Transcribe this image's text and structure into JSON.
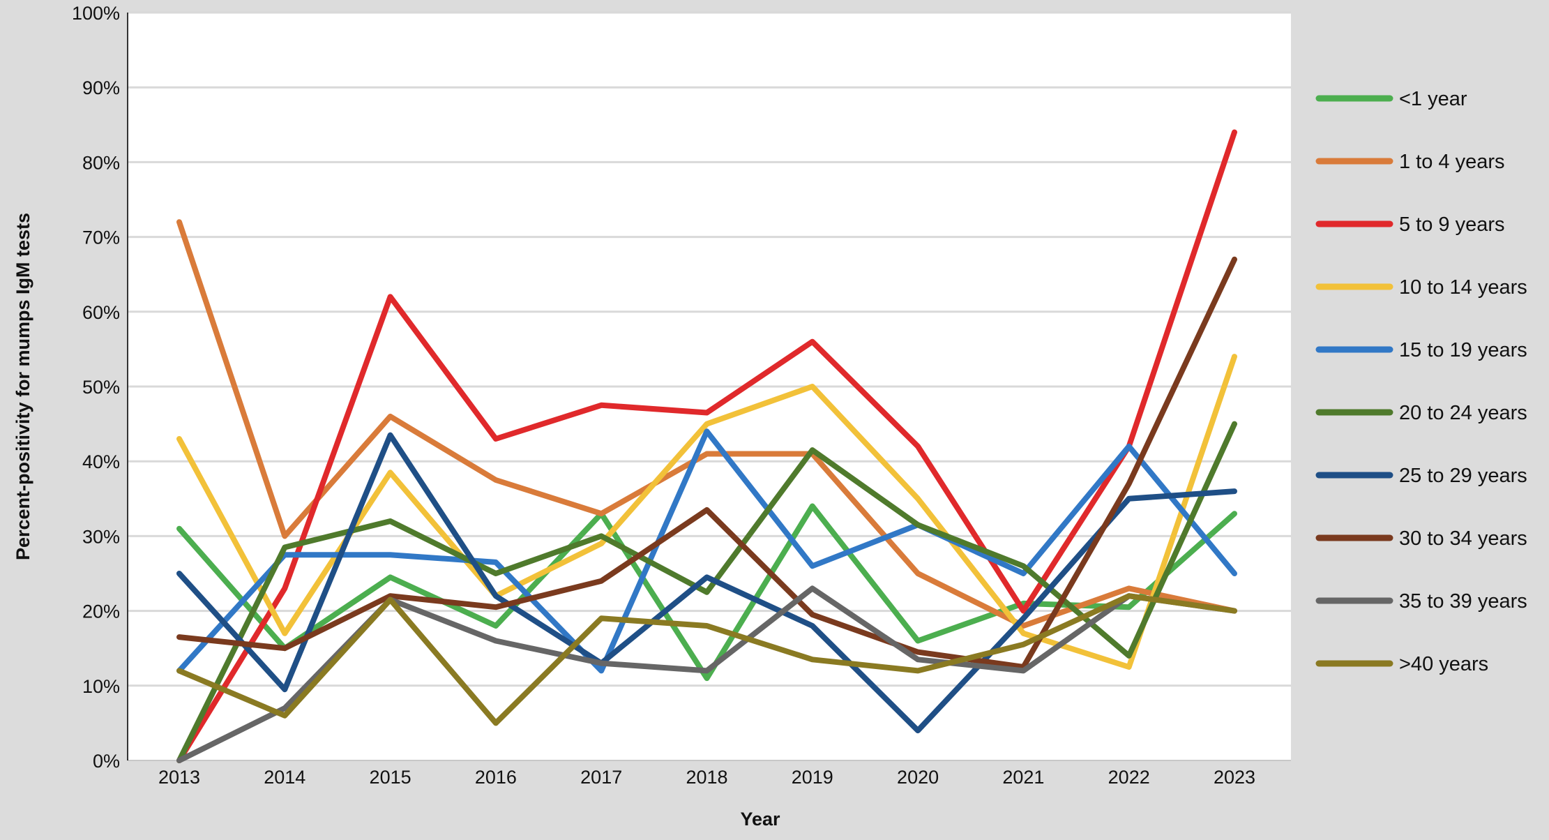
{
  "chart_data": {
    "type": "line",
    "title": "",
    "xlabel": "Year",
    "ylabel": "Percent-positivity for mumps IgM tests",
    "ylim": [
      0,
      100
    ],
    "yticks": [
      0,
      10,
      20,
      30,
      40,
      50,
      60,
      70,
      80,
      90,
      100
    ],
    "ytick_labels": [
      "0%",
      "10%",
      "20%",
      "30%",
      "40%",
      "50%",
      "60%",
      "70%",
      "80%",
      "90%",
      "100%"
    ],
    "categories": [
      "2013",
      "2014",
      "2015",
      "2016",
      "2017",
      "2018",
      "2019",
      "2020",
      "2021",
      "2022",
      "2023"
    ],
    "grid": "horizontal",
    "legend_position": "right",
    "series": [
      {
        "name": "<1 year",
        "color": "#4cae4f",
        "values": [
          31,
          15,
          24.5,
          18,
          33,
          11,
          34,
          16,
          21,
          20.5,
          33
        ]
      },
      {
        "name": "1 to 4 years",
        "color": "#d97b3a",
        "values": [
          72,
          30,
          46,
          37.5,
          33,
          41,
          41,
          25,
          18,
          23,
          20
        ]
      },
      {
        "name": "5 to 9 years",
        "color": "#e0292b",
        "values": [
          0,
          23,
          62,
          43,
          47.5,
          46.5,
          56,
          42,
          20,
          42,
          84
        ]
      },
      {
        "name": "10 to 14 years",
        "color": "#f2c139",
        "values": [
          43,
          17,
          38.5,
          22,
          29,
          45,
          50,
          35,
          17,
          12.5,
          54
        ]
      },
      {
        "name": "15 to 19 years",
        "color": "#3178c6",
        "values": [
          12,
          27.5,
          27.5,
          26.5,
          12,
          44,
          26,
          31.5,
          25,
          42,
          25
        ]
      },
      {
        "name": "20 to 24 years",
        "color": "#4f7a2c",
        "values": [
          0,
          28.5,
          32,
          25,
          30,
          22.5,
          41.5,
          31.5,
          26,
          14,
          45
        ]
      },
      {
        "name": "25 to 29 years",
        "color": "#1f4f86",
        "values": [
          25,
          9.5,
          43.5,
          22,
          13,
          24.5,
          18,
          4,
          19,
          35,
          36
        ]
      },
      {
        "name": "30 to 34 years",
        "color": "#7a3a1e",
        "values": [
          16.5,
          15,
          22,
          20.5,
          24,
          33.5,
          19.5,
          14.5,
          12.5,
          37,
          67
        ]
      },
      {
        "name": "35 to 39 years",
        "color": "#666666",
        "values": [
          0,
          7,
          21.5,
          16,
          13,
          12,
          23,
          13.5,
          12,
          22,
          20
        ]
      },
      {
        "name": ">40 years",
        "color": "#8a7a22",
        "values": [
          12,
          6,
          21.5,
          5,
          19,
          18,
          13.5,
          12,
          15.5,
          22,
          20
        ]
      }
    ]
  }
}
